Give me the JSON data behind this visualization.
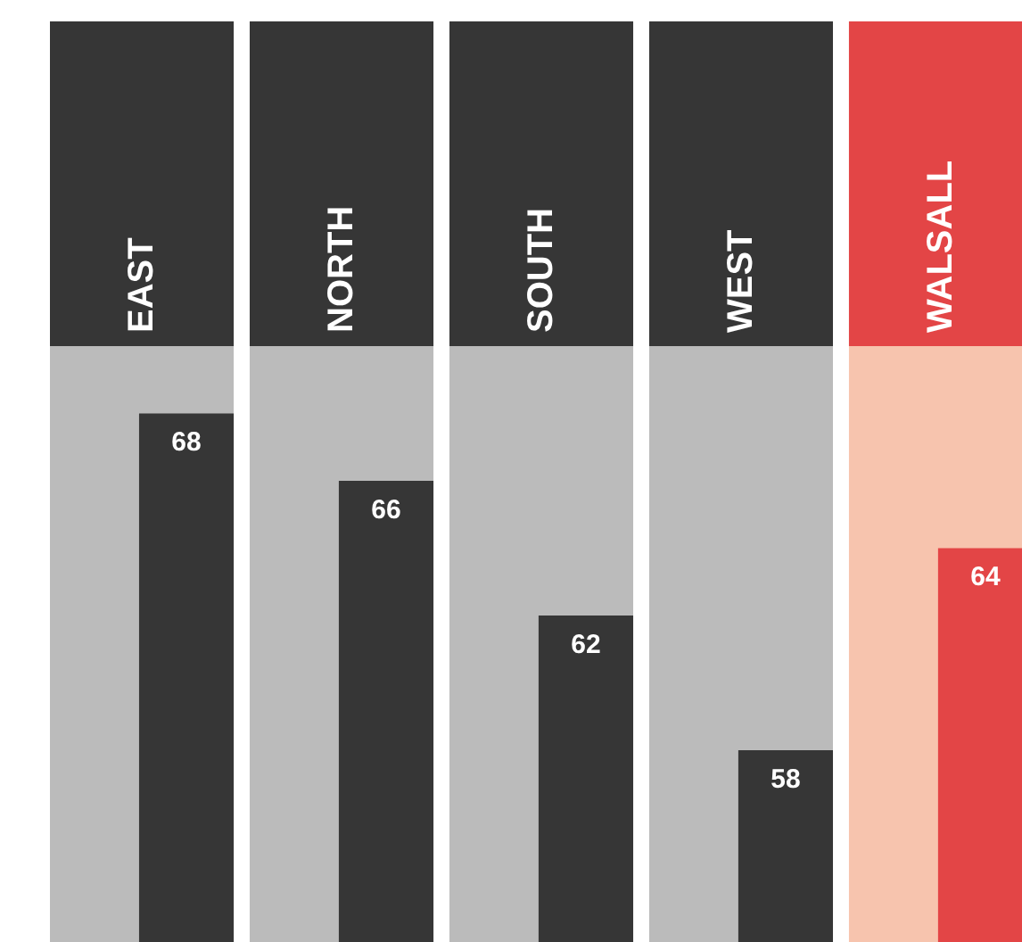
{
  "chart_data": {
    "type": "bar",
    "categories": [
      "EAST",
      "NORTH",
      "SOUTH",
      "WEST",
      "WALSALL"
    ],
    "values": [
      68,
      66,
      62,
      58,
      64
    ],
    "colors": [
      "#363636",
      "#363636",
      "#363636",
      "#363636",
      "#e34546"
    ],
    "ylim": [
      52.3,
      70
    ],
    "tick_labels": "x",
    "data_labels": true,
    "grid": false,
    "bands": [
      {
        "axis": "x",
        "from": "EAST",
        "to": "EAST",
        "color": "#bbbbbb"
      },
      {
        "axis": "x",
        "from": "NORTH",
        "to": "NORTH",
        "color": "#bbbbbb"
      },
      {
        "axis": "x",
        "from": "SOUTH",
        "to": "SOUTH",
        "color": "#bbbbbb"
      },
      {
        "axis": "x",
        "from": "WEST",
        "to": "WEST",
        "color": "#bbbbbb"
      },
      {
        "axis": "x",
        "from": "WALSALL",
        "to": "WALSALL",
        "color": "#f7c4ae"
      }
    ]
  }
}
